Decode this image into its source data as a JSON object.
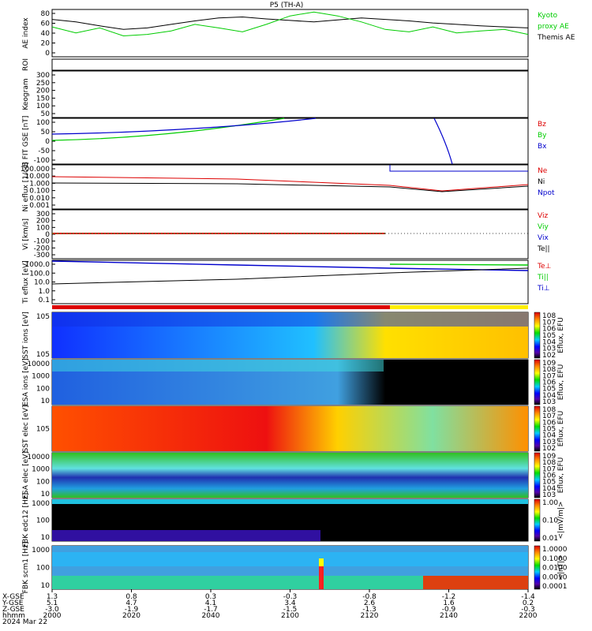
{
  "title": "P5 (TH-A)",
  "footer": {
    "row_labels": [
      "X-GSE",
      "Y-GSE",
      "Z-GSE",
      "hhmm",
      "2024 Mar 22"
    ],
    "columns": [
      {
        "x": "1.3",
        "y": "5.1",
        "z": "-3.0",
        "t": "2000"
      },
      {
        "x": "0.8",
        "y": "4.7",
        "z": "-1.9",
        "t": "2020"
      },
      {
        "x": "0.3",
        "y": "4.1",
        "z": "-1.7",
        "t": "2040"
      },
      {
        "x": "-0.3",
        "y": "3.4",
        "z": "-1.5",
        "t": "2100"
      },
      {
        "x": "-0.8",
        "y": "2.6",
        "z": "-1.3",
        "t": "2120"
      },
      {
        "x": "-1.2",
        "y": "1.6",
        "z": "-0.9",
        "t": "2140"
      },
      {
        "x": "-1.4",
        "y": "0.2",
        "z": "-0.3",
        "t": "2200"
      }
    ]
  },
  "colors": {
    "green": "#00cc00",
    "red": "#dd0000",
    "blue": "#0000cc",
    "black": "#000000"
  },
  "chart_data": [
    {
      "type": "line",
      "ylabel": "AE index",
      "ylim": [
        -10,
        85
      ],
      "yticks": [
        "80",
        "60",
        "40",
        "20",
        "0"
      ],
      "legend": [
        {
          "name": "Kyoto",
          "color": "#00cc00"
        },
        {
          "name": "proxy AE",
          "color": "#00cc00"
        },
        {
          "name": "Themis AE",
          "color": "#000000"
        }
      ],
      "x": [
        2000,
        2005,
        2010,
        2015,
        2020,
        2025,
        2030,
        2035,
        2040,
        2045,
        2050,
        2055,
        2060,
        2065,
        2070,
        2075,
        2080,
        2085,
        2090,
        2095,
        2100
      ],
      "series": [
        {
          "name": "Themis AE",
          "values": [
            65,
            60,
            52,
            45,
            48,
            55,
            62,
            68,
            70,
            66,
            63,
            60,
            64,
            68,
            65,
            62,
            58,
            55,
            52,
            50,
            48
          ]
        },
        {
          "name": "Kyoto proxy AE",
          "values": [
            50,
            38,
            48,
            32,
            35,
            42,
            55,
            48,
            40,
            55,
            72,
            80,
            72,
            60,
            45,
            40,
            50,
            38,
            42,
            45,
            35
          ]
        }
      ]
    },
    {
      "type": "scatter",
      "ylabel": "ROI",
      "yticks": []
    },
    {
      "type": "line",
      "ylabel": "Keogram",
      "yticks": [
        "300",
        "250",
        "200",
        "150",
        "100",
        "50"
      ]
    },
    {
      "type": "line",
      "ylabel": "B FIT GSE [nT]",
      "ylim": [
        -100,
        100
      ],
      "yticks": [
        "100",
        "50",
        "0",
        "-50",
        "-100"
      ],
      "legend": [
        {
          "name": "Bz",
          "color": "#dd0000"
        },
        {
          "name": "By",
          "color": "#00cc00"
        },
        {
          "name": "Bx",
          "color": "#0000cc"
        }
      ]
    },
    {
      "type": "line",
      "ylabel": "Ni eflux [1/cc]",
      "yticks": [
        "100.000",
        "10.000",
        "1.000",
        "0.100",
        "0.010",
        "0.001"
      ],
      "legend": [
        {
          "name": "Ne",
          "color": "#dd0000"
        },
        {
          "name": "Ni",
          "color": "#000000"
        },
        {
          "name": "Npot",
          "color": "#0000cc"
        }
      ]
    },
    {
      "type": "line",
      "ylabel": "Vi [km/s]",
      "ylim": [
        -300,
        300
      ],
      "yticks": [
        "300",
        "200",
        "100",
        "0",
        "-100",
        "-200",
        "-300"
      ],
      "legend": [
        {
          "name": "Viz",
          "color": "#dd0000"
        },
        {
          "name": "Viy",
          "color": "#00cc00"
        },
        {
          "name": "Vix",
          "color": "#0000cc"
        },
        {
          "name": "Te||",
          "color": "#000000"
        }
      ]
    },
    {
      "type": "line",
      "ylabel": "Ti eflux [eV]",
      "yticks": [
        "1000.0",
        "100.0",
        "10.0",
        "1.0",
        "0.1"
      ],
      "legend": [
        {
          "name": "Te⊥",
          "color": "#dd0000"
        },
        {
          "name": "Ti||",
          "color": "#00cc00"
        },
        {
          "name": "Ti⊥",
          "color": "#0000cc"
        }
      ]
    },
    {
      "type": "heatmap",
      "ylabel": "SST ions [eV]",
      "yticks": [
        "10^5",
        "10^5"
      ],
      "cbar_ticks": [
        "10^8",
        "10^7",
        "10^6",
        "10^5",
        "10^4",
        "10^3",
        "10^2"
      ],
      "cbar_label": "Eflux, EFU"
    },
    {
      "type": "heatmap",
      "ylabel": "ESA ions [eV]",
      "yticks": [
        "10000",
        "1000",
        "100",
        "10"
      ],
      "cbar_ticks": [
        "10^9",
        "10^8",
        "10^7",
        "10^6",
        "10^5",
        "10^4",
        "10^3"
      ],
      "cbar_label": "Eflux, EFU"
    },
    {
      "type": "heatmap",
      "ylabel": "SST elec [eV]",
      "yticks": [
        "10^5"
      ],
      "cbar_ticks": [
        "10^8",
        "10^7",
        "10^6",
        "10^5",
        "10^4",
        "10^3",
        "10^2"
      ],
      "cbar_label": "Eflux, EFU"
    },
    {
      "type": "heatmap",
      "ylabel": "ESA elec [eV]",
      "yticks": [
        "10000",
        "1000",
        "100",
        "10"
      ],
      "cbar_ticks": [
        "10^9",
        "10^8",
        "10^7",
        "10^6",
        "10^5",
        "10^4",
        "10^3"
      ],
      "cbar_label": "Eflux, EFU"
    },
    {
      "type": "heatmap",
      "ylabel": "FBK edc12 [Hz]",
      "yticks": [
        "1000",
        "100",
        "10"
      ],
      "cbar_ticks": [
        "1.00",
        "0.10",
        "0.01"
      ],
      "cbar_label": "<|mV/m|>"
    },
    {
      "type": "heatmap",
      "ylabel": "FBK scm1 [Hz]",
      "yticks": [
        "1000",
        "100",
        "10"
      ],
      "cbar_ticks": [
        "1.0000",
        "0.1000",
        "0.0100",
        "0.0010",
        "0.0001"
      ],
      "cbar_label": "<|nT|>"
    }
  ]
}
